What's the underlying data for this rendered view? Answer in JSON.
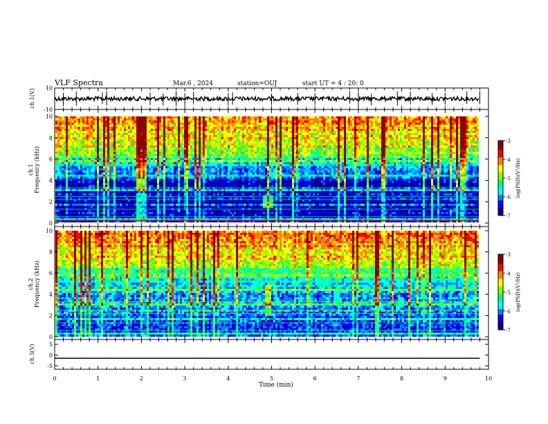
{
  "header": {
    "title": "VLF Spectra",
    "date": "Mar.6 , 2024",
    "station": "station=OUJ",
    "start": "start UT = 4 : 20: 0"
  },
  "colors": {
    "colormap": [
      "#00008b",
      "#0000ff",
      "#0080ff",
      "#00ffff",
      "#00ff80",
      "#80ff00",
      "#ffff00",
      "#ff8000",
      "#ff0000",
      "#8b0000"
    ],
    "waveform": "#000000"
  },
  "chart_data": [
    {
      "type": "line",
      "panel": "ch1-waveform",
      "ylabel": "ch.1(V)",
      "ylim": [
        -10,
        10
      ],
      "yticks": [
        "10",
        "-10"
      ],
      "xlim": [
        0,
        10
      ],
      "baseline": 0,
      "spikes_min": [
        0.2,
        0.5,
        1.1,
        1.2,
        2.2,
        2.5,
        2.8,
        3.0,
        3.2,
        4.0,
        4.1,
        5.0,
        5.6,
        6.0,
        6.8,
        7.0,
        7.3,
        7.9,
        8.2,
        8.7,
        9.0,
        9.5,
        9.8
      ]
    },
    {
      "type": "heatmap",
      "panel": "ch1-spectrogram",
      "ylabel": "ch.1 Frequency (kHz)",
      "ylim": [
        0,
        10
      ],
      "yticks": [
        "0",
        "2",
        "4",
        "6",
        "8",
        "10"
      ],
      "xlim": [
        0,
        9.8
      ],
      "colorbar": {
        "label": "log(PSD)(V²/Hz)",
        "range": [
          -7,
          -3
        ],
        "ticks": [
          "-3",
          "-4",
          "-5",
          "-6",
          "-7"
        ]
      },
      "band_intensity_by_freq_khz": {
        "0-4": "low (-6.5)",
        "4-6": "low-medium (-6)",
        "6-10": "high (-4)"
      },
      "feature": {
        "x_min": 4.9,
        "y_khz": 2,
        "note": "localized enhancement"
      }
    },
    {
      "type": "heatmap",
      "panel": "ch2-spectrogram",
      "ylabel": "ch.2 Frequency (kHz)",
      "ylim": [
        0,
        10
      ],
      "yticks": [
        "0",
        "2",
        "4",
        "6",
        "8",
        "10"
      ],
      "xlim": [
        0,
        9.8
      ],
      "colorbar": {
        "label": "log(PSD)(V²/Hz)",
        "range": [
          -7,
          -3
        ],
        "ticks": [
          "-3",
          "-4",
          "-5",
          "-6",
          "-7"
        ]
      },
      "band_intensity_by_freq_khz": {
        "0-5": "low (-6)",
        "5-7": "medium (-5)",
        "7-10": "high (-4)"
      },
      "feature": {
        "x_min": 4.9,
        "y_khz_range": [
          2,
          5
        ],
        "note": "column enhancement"
      }
    },
    {
      "type": "line",
      "panel": "ch3-waveform",
      "ylabel": "ch.3(V)",
      "ylim": [
        -5,
        5
      ],
      "yticks": [
        "5",
        "0",
        "-5"
      ],
      "xlim": [
        0,
        10
      ],
      "x": [
        0,
        9.8
      ],
      "y": [
        -1.5,
        -1.5
      ]
    },
    {
      "type": "axis",
      "xlabel": "Time (min)",
      "xticks": [
        "0",
        "1",
        "2",
        "3",
        "4",
        "5",
        "6",
        "7",
        "8",
        "9",
        "10"
      ]
    }
  ]
}
